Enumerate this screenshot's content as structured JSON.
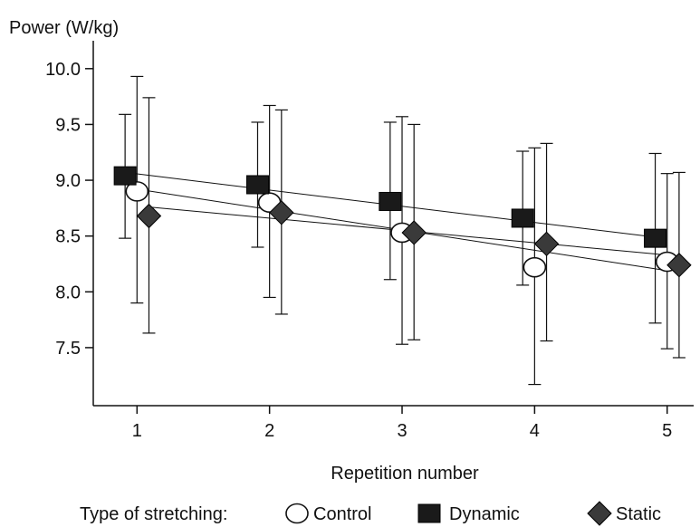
{
  "chart_data": {
    "type": "scatter",
    "ylabel": "Power (W/kg)",
    "xlabel": "Repetition number",
    "x": [
      1,
      2,
      3,
      4,
      5
    ],
    "xlim": [
      0.67,
      5.2
    ],
    "ylim": [
      6.98,
      10.25
    ],
    "yticks": [
      7.5,
      8.0,
      8.5,
      9.0,
      9.5,
      10.0
    ],
    "ytick_labels": [
      "7.5",
      "8.0",
      "8.5",
      "9.0",
      "9.5",
      "10.0"
    ],
    "xtick_labels": [
      "1",
      "2",
      "3",
      "4",
      "5"
    ],
    "grid": false,
    "legend": {
      "title": "Type of stretching:",
      "placement": "bottom"
    },
    "series": [
      {
        "name": "Control",
        "marker": "circle-open",
        "x_offset": 0,
        "values": [
          8.9,
          8.8,
          8.53,
          8.22,
          8.27
        ],
        "err_low": [
          7.9,
          7.95,
          7.53,
          7.17,
          7.49
        ],
        "err_high": [
          9.93,
          9.67,
          9.57,
          9.29,
          9.06
        ],
        "trend": [
          8.92,
          8.19
        ]
      },
      {
        "name": "Dynamic",
        "marker": "square-filled",
        "x_offset": -0.09,
        "values": [
          9.04,
          8.96,
          8.81,
          8.66,
          8.48
        ],
        "err_low": [
          8.48,
          8.4,
          8.11,
          8.06,
          7.72
        ],
        "err_high": [
          9.59,
          9.52,
          9.52,
          9.26,
          9.24
        ],
        "trend": [
          9.07,
          8.49
        ]
      },
      {
        "name": "Static",
        "marker": "diamond-filled",
        "x_offset": 0.09,
        "values": [
          8.68,
          8.71,
          8.53,
          8.43,
          8.24
        ],
        "err_low": [
          7.63,
          7.8,
          7.57,
          7.56,
          7.41
        ],
        "err_high": [
          9.74,
          9.63,
          9.5,
          9.33,
          9.07
        ],
        "trend": [
          8.76,
          8.32
        ]
      }
    ],
    "colors": {
      "ink": "#111111",
      "marker_fill": "#1a1a1a",
      "diamond_fill": "#3a3a3a",
      "open_fill": "#ffffff"
    }
  }
}
